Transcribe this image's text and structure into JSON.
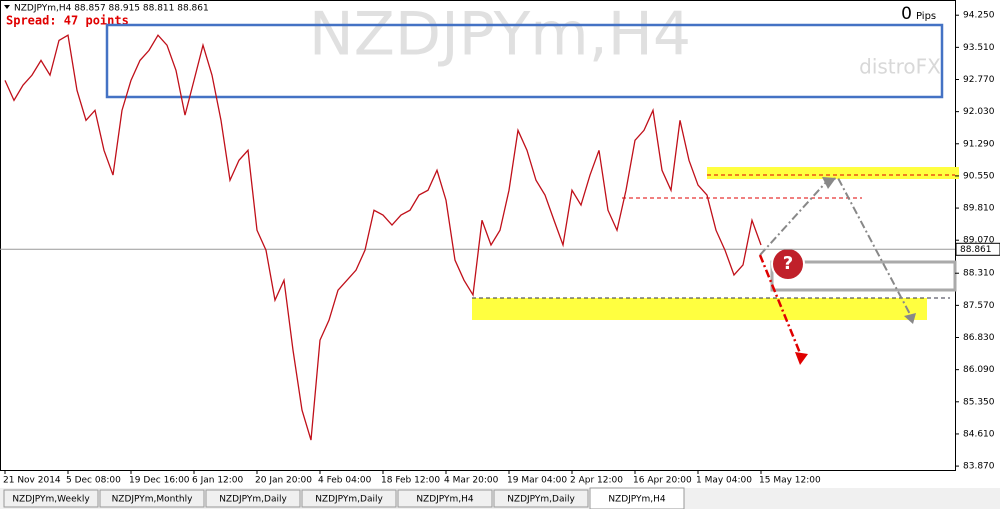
{
  "chart_data": {
    "type": "line",
    "header": "NZDJPYm,H4  88.857 88.915 88.811 88.861",
    "spread": "Spread: 47 points",
    "watermark": "NZDJPYm,H4",
    "brand": "distroFX",
    "pips_value": 0,
    "pips_label": "Pips",
    "annotation_icon": "?",
    "current_price": 88.861,
    "color": "#c0101a",
    "categories": [
      "21 Nov 2014",
      null,
      null,
      null,
      null,
      null,
      null,
      "5 Dec 08:00",
      null,
      null,
      null,
      null,
      null,
      null,
      "19 Dec 16:00",
      null,
      null,
      null,
      null,
      null,
      null,
      "6 Jan 12:00",
      null,
      null,
      null,
      null,
      null,
      null,
      "20 Jan 20:00",
      null,
      null,
      null,
      null,
      null,
      null,
      "4 Feb 04:00",
      null,
      null,
      null,
      null,
      null,
      null,
      "18 Feb 12:00",
      null,
      null,
      null,
      null,
      null,
      null,
      "4 Mar 20:00",
      null,
      null,
      null,
      null,
      null,
      null,
      "19 Mar 04:00",
      null,
      null,
      null,
      null,
      null,
      null,
      "2 Apr 12:00",
      null,
      null,
      null,
      null,
      null,
      null,
      "16 Apr 20:00",
      null,
      null,
      null,
      null,
      null,
      null,
      "1 May 04:00",
      null,
      null,
      null,
      null,
      null,
      null,
      "15 May 12:00"
    ],
    "values": [
      92.75,
      92.29,
      92.64,
      92.87,
      93.21,
      92.87,
      93.67,
      93.79,
      92.52,
      91.83,
      92.06,
      91.14,
      90.57,
      92.06,
      92.75,
      93.21,
      93.44,
      93.79,
      93.56,
      92.98,
      91.95,
      92.75,
      93.56,
      92.87,
      91.83,
      90.45,
      90.91,
      91.14,
      89.3,
      88.84,
      87.69,
      88.15,
      86.54,
      85.16,
      84.47,
      86.77,
      87.23,
      87.92,
      88.15,
      88.38,
      88.84,
      89.76,
      89.65,
      89.42,
      89.65,
      89.76,
      90.11,
      90.22,
      90.68,
      89.99,
      88.61,
      88.15,
      87.81,
      89.53,
      88.96,
      89.3,
      90.22,
      91.6,
      91.14,
      90.45,
      90.11,
      89.53,
      88.96,
      90.22,
      89.88,
      90.57,
      91.14,
      89.76,
      89.3,
      90.22,
      91.37,
      91.6,
      92.06,
      90.68,
      90.22,
      91.83,
      90.91,
      90.34,
      90.11,
      89.3,
      88.84,
      88.27,
      88.5,
      89.53,
      88.96
    ],
    "ylim": [
      83.78,
      94.6
    ],
    "yticks": [
      {
        "value": 94.25,
        "label": "94.250"
      },
      {
        "value": 93.51,
        "label": "93.510"
      },
      {
        "value": 92.77,
        "label": "92.770"
      },
      {
        "value": 92.03,
        "label": "92.030"
      },
      {
        "value": 91.29,
        "label": "91.290"
      },
      {
        "value": 90.55,
        "label": "90.550"
      },
      {
        "value": 89.81,
        "label": "89.810"
      },
      {
        "value": 89.07,
        "label": "89.070"
      },
      {
        "value": 88.31,
        "label": "88.310"
      },
      {
        "value": 87.57,
        "label": "87.570"
      },
      {
        "value": 86.83,
        "label": "86.830"
      },
      {
        "value": 86.09,
        "label": "86.090"
      },
      {
        "value": 85.35,
        "label": "85.350"
      },
      {
        "value": 84.61,
        "label": "84.610"
      },
      {
        "value": 83.87,
        "label": "83.870"
      }
    ],
    "tabs": [
      "NZDJPYm,Weekly",
      "NZDJPYm,Monthly",
      "NZDJPYm,Daily",
      "NZDJPYm,Daily",
      "NZDJPYm,H4",
      "NZDJPYm,Daily",
      "NZDJPYm,H4"
    ],
    "active_tab": 6
  }
}
